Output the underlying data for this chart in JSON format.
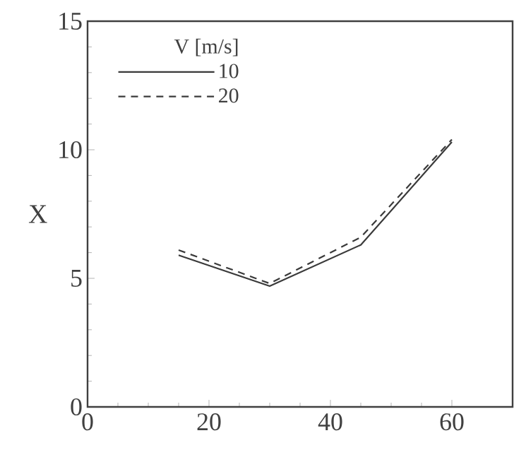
{
  "chart_data": {
    "type": "line",
    "ylabel": "X",
    "legend_title": "V [m/s]",
    "legend": "top left",
    "xlim": [
      0,
      70
    ],
    "xticks": [
      0,
      20,
      40,
      60
    ],
    "ylim": [
      0,
      15
    ],
    "yticks": [
      0,
      5,
      10,
      15
    ],
    "x": [
      15,
      30,
      45,
      60
    ],
    "series": [
      {
        "name": "10",
        "color": "#3a3a3a",
        "line_style": "solid",
        "values": [
          5.9,
          4.7,
          6.3,
          10.3
        ]
      },
      {
        "name": "20",
        "color": "#3a3a3a",
        "line_style": "dashed",
        "values": [
          6.1,
          4.8,
          6.6,
          10.4
        ]
      }
    ]
  }
}
